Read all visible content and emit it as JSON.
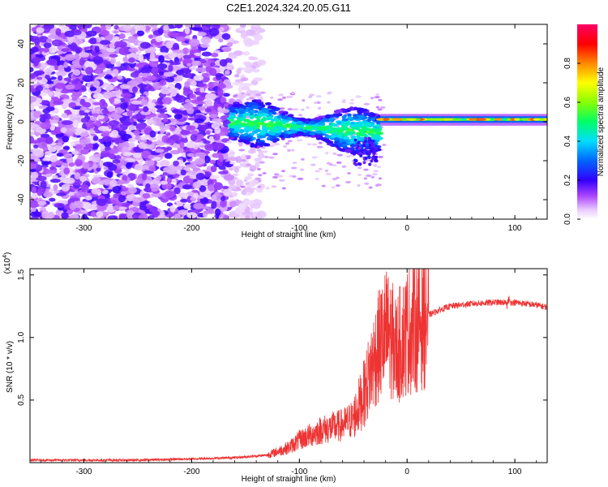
{
  "title": "C2E1.2024.324.20.05.G11",
  "chart_data": [
    {
      "type": "heatmap",
      "title": "C2E1.2024.324.20.05.G11",
      "xlabel": "Height of straight line (km)",
      "ylabel": "Frequency (Hz)",
      "xlim": [
        -350,
        130
      ],
      "ylim": [
        -50,
        50
      ],
      "xticks": [
        -300,
        -200,
        -100,
        0,
        100
      ],
      "xtick_labels": [
        "-300",
        "-200",
        "-100",
        "0",
        "100"
      ],
      "yticks": [
        -40,
        -20,
        0,
        20,
        40
      ],
      "ytick_labels": [
        "-40",
        "-20",
        "0",
        "20",
        "40"
      ],
      "colorbar": {
        "label": "Normalized spectral amplitude",
        "range": [
          0,
          1
        ],
        "ticks": [
          0,
          0.2,
          0.4,
          0.6,
          0.8
        ],
        "tick_labels": [
          "0.0",
          "0.2",
          "0.4",
          "0.6",
          "0.8"
        ],
        "colors": [
          "#ffffff",
          "#dd99ff",
          "#8800ee",
          "#0000ff",
          "#00ddff",
          "#00ff00",
          "#ffff00",
          "#ff8800",
          "#ff0000",
          "#ff0088"
        ]
      },
      "regions": [
        {
          "x_range": [
            -350,
            -165
          ],
          "freq_range": [
            -50,
            50
          ],
          "amplitude": 0.12,
          "note_color": "#8800ee"
        },
        {
          "x_range": [
            -165,
            -130
          ],
          "freq_range": [
            -50,
            50
          ],
          "amplitude": 0.05,
          "note_color": "#dd99ff"
        },
        {
          "x_range": [
            -165,
            -30
          ],
          "freq_range": [
            -12,
            10
          ],
          "amplitude": 0.35,
          "note_color": "#00ddff"
        },
        {
          "x_range": [
            -20,
            130
          ],
          "freq_range": [
            -2,
            4
          ],
          "amplitude": 0.55,
          "note_color": "#00ff00"
        }
      ]
    },
    {
      "type": "line",
      "xlabel": "Height of straight line (km)",
      "ylabel": "SNR (10 * v/v)",
      "y_multiplier_label": "(x10",
      "y_multiplier_exp": "4",
      "y_multiplier_close": ")",
      "xlim": [
        -350,
        130
      ],
      "ylim": [
        0,
        1.55
      ],
      "xticks": [
        -300,
        -200,
        -100,
        0,
        100
      ],
      "xtick_labels": [
        "-300",
        "-200",
        "-100",
        "0",
        "100"
      ],
      "yticks": [
        0.5,
        1.0,
        1.5
      ],
      "ytick_labels": [
        "0.5",
        "1.0",
        "1.5"
      ],
      "series": [
        {
          "color": "#ee3333",
          "x": [
            -350,
            -300,
            -250,
            -200,
            -160,
            -130,
            -110,
            -100,
            -90,
            -80,
            -70,
            -60,
            -50,
            -45,
            -40,
            -35,
            -30,
            -25,
            -20,
            -15,
            -10,
            0,
            10,
            20,
            30,
            40,
            60,
            80,
            100,
            120,
            130
          ],
          "y": [
            0.02,
            0.02,
            0.02,
            0.03,
            0.04,
            0.06,
            0.12,
            0.18,
            0.22,
            0.26,
            0.28,
            0.3,
            0.35,
            0.45,
            0.55,
            0.7,
            0.85,
            0.95,
            1.05,
            1.0,
            0.9,
            1.05,
            1.12,
            1.18,
            1.22,
            1.25,
            1.27,
            1.28,
            1.28,
            1.26,
            1.24
          ]
        }
      ]
    }
  ]
}
